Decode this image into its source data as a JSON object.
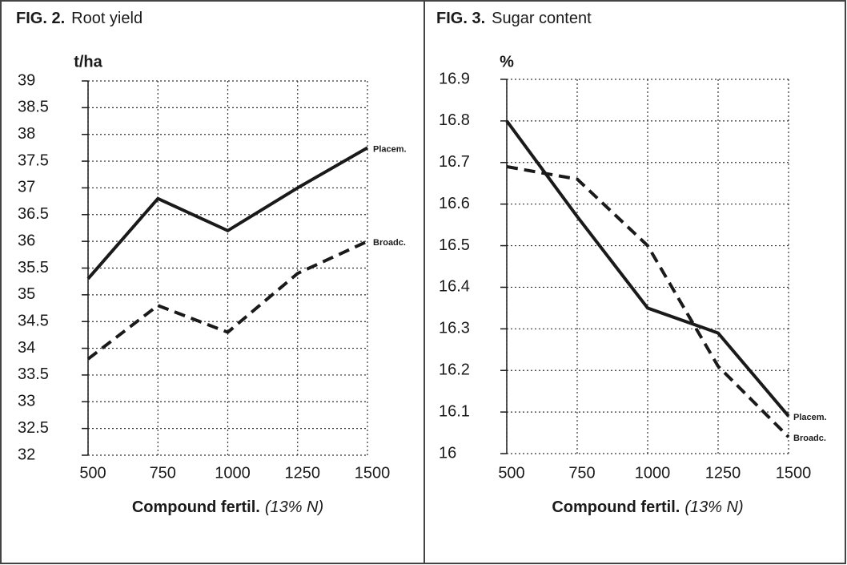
{
  "chart_data": [
    {
      "type": "line",
      "fig_label": "FIG. 2.",
      "title": "Root yield",
      "ylabel": "t/ha",
      "xlabel": "Compound fertil.",
      "xlabel_note": "(13% N)",
      "x": [
        500,
        750,
        1000,
        1250,
        1500
      ],
      "series": [
        {
          "name": "Placem.",
          "color": "#1a1a1a",
          "dashed": false,
          "values": [
            35.3,
            36.8,
            36.2,
            37.0,
            37.75
          ]
        },
        {
          "name": "Broadc.",
          "color": "#1a1a1a",
          "dashed": true,
          "values": [
            33.8,
            34.8,
            34.3,
            35.4,
            36.0
          ]
        }
      ],
      "xlim": [
        500,
        1500
      ],
      "xticks": [
        500,
        750,
        1000,
        1250,
        1500
      ],
      "ylim": [
        32,
        39
      ],
      "yticks": [
        32,
        32.5,
        33,
        33.5,
        34,
        34.5,
        35,
        35.5,
        36,
        36.5,
        37,
        37.5,
        38,
        38.5,
        39
      ],
      "grid": true
    },
    {
      "type": "line",
      "fig_label": "FIG. 3.",
      "title": "Sugar content",
      "ylabel": "%",
      "xlabel": "Compound fertil.",
      "xlabel_note": "(13% N)",
      "x": [
        500,
        750,
        1000,
        1250,
        1500
      ],
      "series": [
        {
          "name": "Placem.",
          "color": "#1a1a1a",
          "dashed": false,
          "values": [
            16.8,
            16.57,
            16.35,
            16.29,
            16.09
          ]
        },
        {
          "name": "Broadc.",
          "color": "#1a1a1a",
          "dashed": true,
          "values": [
            16.69,
            16.66,
            16.5,
            16.21,
            16.04
          ]
        }
      ],
      "xlim": [
        500,
        1500
      ],
      "xticks": [
        500,
        750,
        1000,
        1250,
        1500
      ],
      "ylim": [
        16,
        16.9
      ],
      "yticks": [
        16,
        16.1,
        16.2,
        16.3,
        16.4,
        16.5,
        16.6,
        16.7,
        16.8,
        16.9
      ],
      "grid": true
    }
  ]
}
